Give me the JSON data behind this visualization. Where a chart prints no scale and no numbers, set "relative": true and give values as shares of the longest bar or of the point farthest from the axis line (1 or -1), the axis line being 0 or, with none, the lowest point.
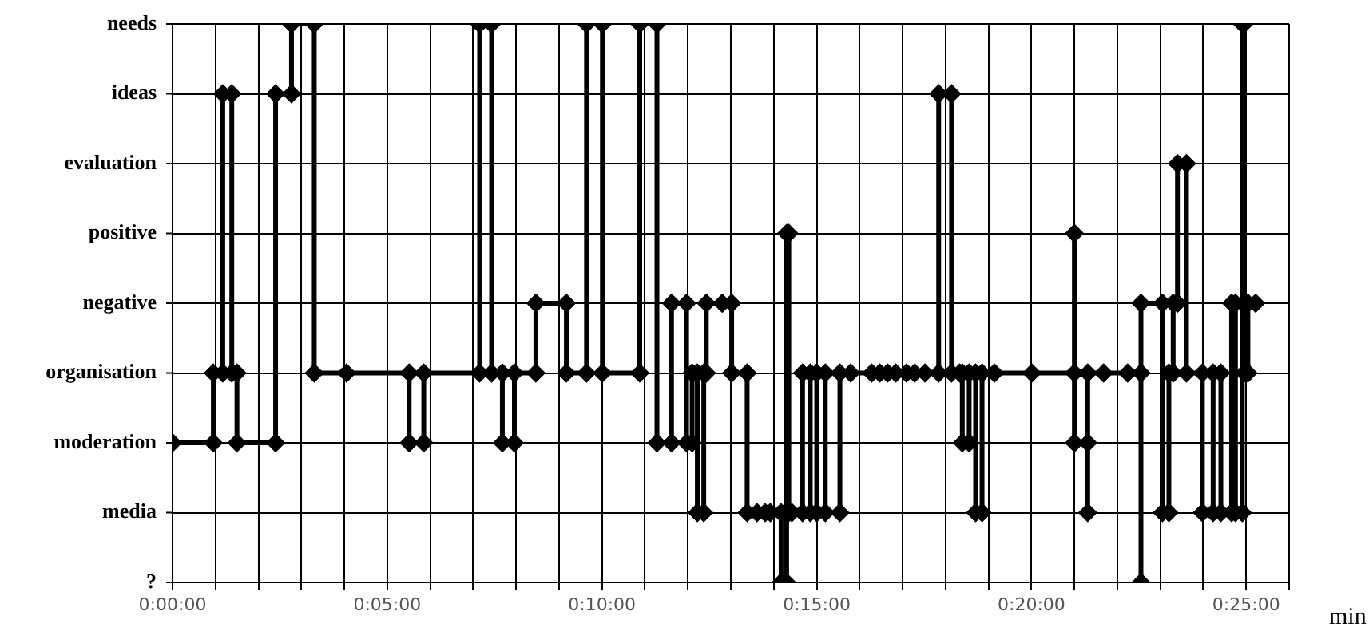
{
  "chart_data": {
    "type": "line",
    "xlabel": "min",
    "marker": "diamond",
    "line_style": "solid",
    "grid": true,
    "legend": false,
    "relative": true,
    "xlim": [
      0,
      26
    ],
    "xticks": [
      {
        "value": 0,
        "label": "0:00:00"
      },
      {
        "value": 1,
        "label": null
      },
      {
        "value": 2,
        "label": null
      },
      {
        "value": 3,
        "label": null
      },
      {
        "value": 4,
        "label": null
      },
      {
        "value": 5,
        "label": "0:05:00"
      },
      {
        "value": 6,
        "label": null
      },
      {
        "value": 7,
        "label": null
      },
      {
        "value": 8,
        "label": null
      },
      {
        "value": 9,
        "label": null
      },
      {
        "value": 10,
        "label": "0:10:00"
      },
      {
        "value": 11,
        "label": null
      },
      {
        "value": 12,
        "label": null
      },
      {
        "value": 13,
        "label": null
      },
      {
        "value": 14,
        "label": null
      },
      {
        "value": 15,
        "label": "0:15:00"
      },
      {
        "value": 16,
        "label": null
      },
      {
        "value": 17,
        "label": null
      },
      {
        "value": 18,
        "label": null
      },
      {
        "value": 19,
        "label": null
      },
      {
        "value": 20,
        "label": "0:20:00"
      },
      {
        "value": 21,
        "label": null
      },
      {
        "value": 22,
        "label": null
      },
      {
        "value": 23,
        "label": null
      },
      {
        "value": 24,
        "label": null
      },
      {
        "value": 25,
        "label": "0:25:00"
      },
      {
        "value": 26,
        "label": null
      }
    ],
    "annotations": [
      "needs",
      "ideas",
      "evaluation",
      "positive",
      "negative",
      "organisation",
      "moderation",
      "media",
      "?"
    ],
    "series": [
      {
        "color": "#000000",
        "x": [
          0,
          0.95,
          0.95,
          1.17,
          1.17,
          1.38,
          1.38,
          1.5,
          1.5,
          2.4,
          2.4,
          2.77,
          2.77,
          3.3,
          3.3,
          4.05,
          5.51,
          5.51,
          5.85,
          5.85,
          7.15,
          7.15,
          7.43,
          7.43,
          7.68,
          7.68,
          7.96,
          7.96,
          8.46,
          8.46,
          9.17,
          9.17,
          9.64,
          9.64,
          10.01,
          10.01,
          10.88,
          10.88,
          11.28,
          11.28,
          11.62,
          11.62,
          11.97,
          11.97,
          12.1,
          12.1,
          12.22,
          12.22,
          12.37,
          12.37,
          12.43,
          12.43,
          12.8,
          13.02,
          13.02,
          13.38,
          13.38,
          13.61,
          13.8,
          13.92,
          14.17,
          14.17,
          14.3,
          14.3,
          14.35,
          14.35,
          14.42,
          14.67,
          14.67,
          14.85,
          14.85,
          15.0,
          15.0,
          15.2,
          15.2,
          15.54,
          15.54,
          15.79,
          16.28,
          16.47,
          16.65,
          16.84,
          17.09,
          17.28,
          17.52,
          17.84,
          17.84,
          18.14,
          18.14,
          18.33,
          18.39,
          18.39,
          18.55,
          18.55,
          18.7,
          18.7,
          18.85,
          18.85,
          19.14,
          20.01,
          21.0,
          21.0,
          21.0,
          21.31,
          21.31,
          21.31,
          21.68,
          22.24,
          22.55,
          22.55,
          22.55,
          23.05,
          23.05,
          23.2,
          23.2,
          23.3,
          23.3,
          23.4,
          23.4,
          23.61,
          23.61,
          23.98,
          23.98,
          24.23,
          24.23,
          24.41,
          24.41,
          24.66,
          24.66,
          24.75,
          24.75,
          24.91,
          24.91,
          24.95,
          24.95,
          25.04,
          25.04,
          25.22
        ],
        "values": [
          0.25,
          0.25,
          0.375,
          0.375,
          0.875,
          0.875,
          0.375,
          0.375,
          0.25,
          0.25,
          0.875,
          0.875,
          1,
          1,
          0.375,
          0.375,
          0.375,
          0.25,
          0.25,
          0.375,
          0.375,
          1,
          1,
          0.375,
          0.375,
          0.25,
          0.25,
          0.375,
          0.375,
          0.5,
          0.5,
          0.375,
          0.375,
          1,
          1,
          0.375,
          0.375,
          1,
          1,
          0.25,
          0.25,
          0.5,
          0.5,
          0.25,
          0.25,
          0.375,
          0.375,
          0.125,
          0.125,
          0.375,
          0.375,
          0.5,
          0.5,
          0.5,
          0.375,
          0.375,
          0.125,
          0.125,
          0.125,
          0.125,
          0.125,
          0,
          0,
          0.625,
          0.625,
          0.125,
          0.125,
          0.125,
          0.375,
          0.375,
          0.125,
          0.125,
          0.375,
          0.375,
          0.125,
          0.125,
          0.375,
          0.375,
          0.375,
          0.375,
          0.375,
          0.375,
          0.375,
          0.375,
          0.375,
          0.375,
          0.875,
          0.875,
          0.375,
          0.375,
          0.375,
          0.25,
          0.25,
          0.375,
          0.375,
          0.125,
          0.125,
          0.375,
          0.375,
          0.375,
          0.375,
          0.625,
          0.25,
          0.25,
          0.125,
          0.375,
          0.375,
          0.375,
          0.375,
          0,
          0.5,
          0.5,
          0.125,
          0.125,
          0.375,
          0.375,
          0.5,
          0.5,
          0.75,
          0.75,
          0.375,
          0.375,
          0.125,
          0.125,
          0.375,
          0.375,
          0.125,
          0.125,
          0.5,
          0.5,
          0.125,
          0.125,
          1,
          1,
          0.375,
          0.375,
          0.5,
          0.5
        ]
      }
    ]
  }
}
